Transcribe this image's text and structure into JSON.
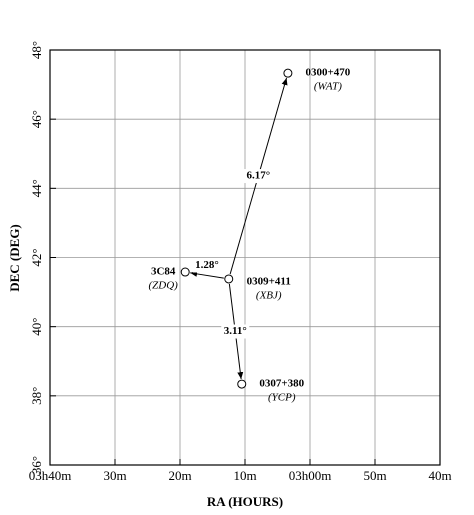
{
  "chart_data": {
    "type": "scatter",
    "x_label": "RA (HOURS)",
    "y_label": "DEC (DEG)",
    "xlim": [
      220,
      160
    ],
    "ylim": [
      36,
      48
    ],
    "xticks": [
      {
        "value": 220,
        "label": "03h40m"
      },
      {
        "value": 210,
        "label": "30m"
      },
      {
        "value": 200,
        "label": "20m"
      },
      {
        "value": 190,
        "label": "10m"
      },
      {
        "value": 180,
        "label": "03h00m"
      },
      {
        "value": 170,
        "label": "50m"
      },
      {
        "value": 160,
        "label": "40m"
      }
    ],
    "yticks": [
      {
        "value": 36,
        "label": "36°"
      },
      {
        "value": 38,
        "label": "38°"
      },
      {
        "value": 40,
        "label": "40°"
      },
      {
        "value": 42,
        "label": "42°"
      },
      {
        "value": 44,
        "label": "44°"
      },
      {
        "value": 46,
        "label": "46°"
      },
      {
        "value": 48,
        "label": "48°"
      }
    ],
    "grid": true,
    "points": [
      {
        "name": "0300+470",
        "alias": "(WAT)",
        "separation": "6.17°"
      },
      {
        "name": "3C84",
        "alias": "(ZDQ)",
        "separation": "1.28°"
      },
      {
        "name": "0309+411",
        "alias": "(XBJ)"
      },
      {
        "name": "0307+380",
        "alias": "(YCP)",
        "separation": "3.11°"
      }
    ],
    "x": [
      183.4,
      199.2,
      192.5,
      190.5
    ],
    "values": [
      47.33,
      41.58,
      41.38,
      38.34
    ]
  }
}
